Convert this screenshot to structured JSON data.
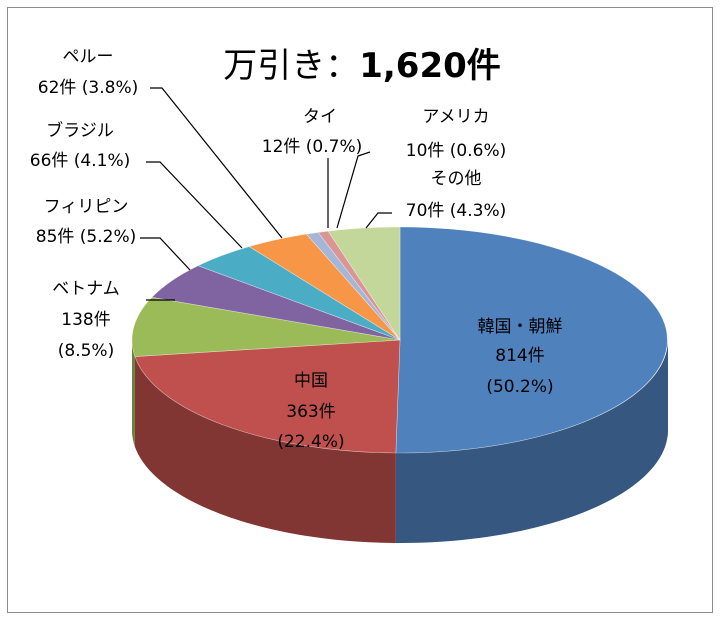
{
  "chart_data": {
    "type": "pie",
    "title": "万引き：1,620件",
    "title_parts": {
      "prefix": "万引き",
      "separator": "：",
      "value": "1,620件"
    },
    "total": 1620,
    "unit": "件",
    "legend": "none",
    "slices": [
      {
        "name": "韓国・朝鮮",
        "value": 814,
        "percent": 50.2,
        "count_label": "814件",
        "pct_label": "(50.2%)",
        "color": "#4f81bd"
      },
      {
        "name": "中国",
        "value": 363,
        "percent": 22.4,
        "count_label": "363件",
        "pct_label": "(22.4%)",
        "color": "#c0504d"
      },
      {
        "name": "ベトナム",
        "value": 138,
        "percent": 8.5,
        "count_label": "138件",
        "pct_label": "(8.5%)",
        "color": "#9bbb59"
      },
      {
        "name": "フィリピン",
        "value": 85,
        "percent": 5.2,
        "count_label": "85件 (5.2%)",
        "pct_label": "",
        "color": "#8064a2"
      },
      {
        "name": "ブラジル",
        "value": 66,
        "percent": 4.1,
        "count_label": "66件 (4.1%)",
        "pct_label": "",
        "color": "#4bacc6"
      },
      {
        "name": "ペルー",
        "value": 62,
        "percent": 3.8,
        "count_label": "62件 (3.8%)",
        "pct_label": "",
        "color": "#f79646"
      },
      {
        "name": "タイ",
        "value": 12,
        "percent": 0.7,
        "count_label": "12件 (0.7%)",
        "pct_label": "",
        "color": "#a5b6d8"
      },
      {
        "name": "アメリカ",
        "value": 10,
        "percent": 0.6,
        "count_label": "10件 (0.6%)",
        "pct_label": "",
        "color": "#d99694"
      },
      {
        "name": "その他",
        "value": 70,
        "percent": 4.3,
        "count_label": "70件 (4.3%)",
        "pct_label": "",
        "color": "#c4d79b"
      }
    ]
  }
}
